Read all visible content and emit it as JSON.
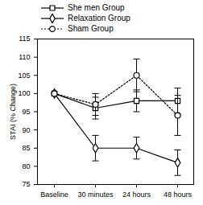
{
  "chart_data": {
    "type": "line",
    "y_label": "STAI (% Change)",
    "categories": [
      "Baseline",
      "30 minutes",
      "24 hours",
      "48 hours"
    ],
    "ylim": [
      75,
      115
    ],
    "yticks": [
      75,
      80,
      85,
      90,
      95,
      100,
      105,
      110,
      115
    ],
    "grid": false,
    "legend": "top-left",
    "series": [
      {
        "name": "She men Group",
        "color": "#000000",
        "marker": "square",
        "line_style": "solid",
        "values": [
          100,
          96,
          98,
          98
        ],
        "errors": [
          null,
          3,
          3,
          3.5
        ]
      },
      {
        "name": "Relaxation Group",
        "color": "#000000",
        "marker": "diamond",
        "line_style": "solid",
        "values": [
          100,
          85,
          85,
          81
        ],
        "errors": [
          null,
          3.5,
          3,
          3.5
        ]
      },
      {
        "name": "Sham Group",
        "color": "#000000",
        "marker": "circle",
        "line_style": "dotted",
        "values": [
          100,
          97,
          105,
          94
        ],
        "errors": [
          null,
          3,
          4.5,
          5.5
        ]
      }
    ]
  }
}
